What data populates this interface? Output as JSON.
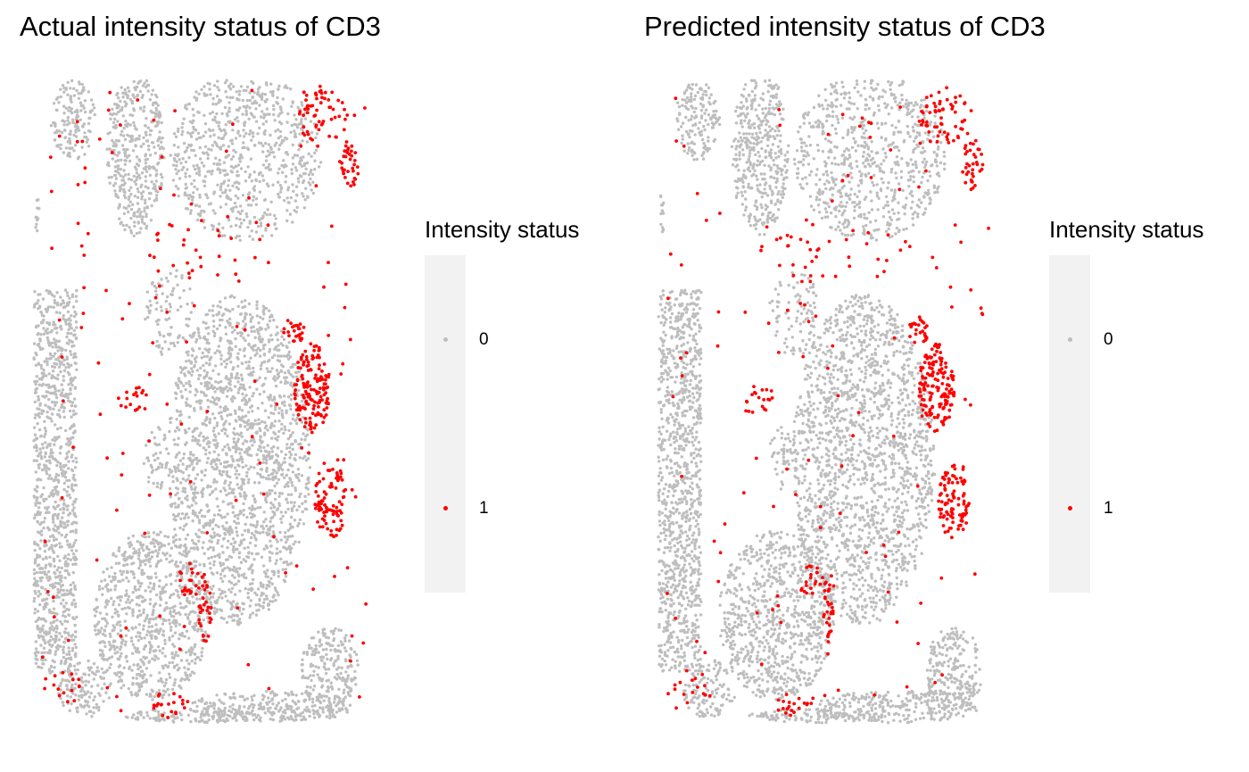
{
  "chart_data": [
    {
      "type": "scatter",
      "title": "Actual intensity status of CD3",
      "legend": {
        "title": "Intensity status",
        "position": "right",
        "levels": [
          {
            "label": "0",
            "color": "#bebebe"
          },
          {
            "label": "1",
            "color": "#ff0000"
          }
        ]
      },
      "axes_visible": false,
      "grid": false,
      "seed": 11
    },
    {
      "type": "scatter",
      "title": "Predicted intensity status of CD3",
      "legend": {
        "title": "Intensity status",
        "position": "right",
        "levels": [
          {
            "label": "0",
            "color": "#bebebe"
          },
          {
            "label": "1",
            "color": "#ff0000"
          }
        ]
      },
      "axes_visible": false,
      "grid": false,
      "seed": 29
    }
  ]
}
